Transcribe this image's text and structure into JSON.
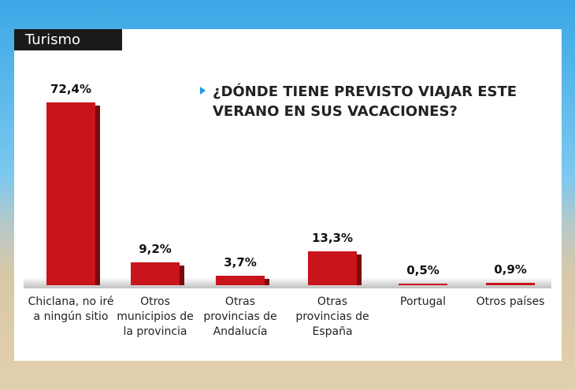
{
  "tag": "Turismo",
  "chart_data": {
    "type": "bar",
    "title": "¿DÓNDE TIENE PREVISTO VIAJAR ESTE\nVERANO EN SUS VACACIONES?",
    "categories": [
      "Chiclana, no iré\na ningún sitio",
      "Otros\nmunicipios de\nla provincia",
      "Otras\nprovincias de\nAndalucía",
      "Otras\nprovincias de\nEspaña",
      "Portugal",
      "Otros países"
    ],
    "values": [
      72.4,
      9.2,
      3.7,
      13.3,
      0.5,
      0.9
    ],
    "value_labels": [
      "72,4%",
      "9,2%",
      "3,7%",
      "13,3%",
      "0,5%",
      "0,9%"
    ],
    "color": "#c8141a"
  }
}
